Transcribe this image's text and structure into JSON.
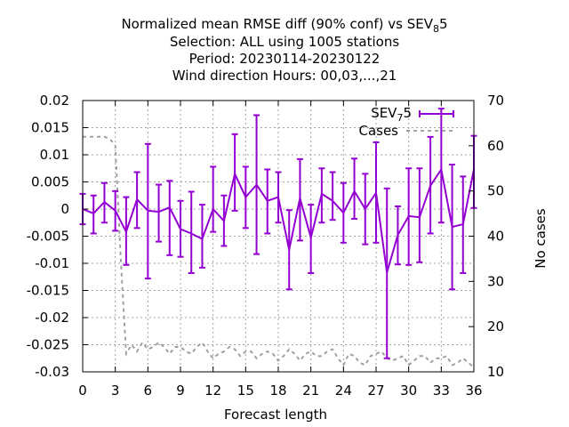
{
  "chart_data": {
    "type": "line",
    "title_lines": [
      "Normalized mean RMSE diff (90% conf) vs SEV",
      "Selection: ALL using  1005 stations",
      "Period: 20230114-20230122",
      "Wind direction   Hours:  00,03,...,21"
    ],
    "title_sub": "8",
    "title_tail": "5",
    "xlabel": "Forecast length",
    "ylabel_right": "No cases",
    "xlim": [
      0,
      36
    ],
    "ylim": [
      -0.03,
      0.02
    ],
    "y2lim": [
      10,
      70
    ],
    "x_ticks": [
      0,
      3,
      6,
      9,
      12,
      15,
      18,
      21,
      24,
      27,
      30,
      33,
      36
    ],
    "y_tick_labels": [
      "0.02",
      "0.015",
      "0.01",
      "0.005",
      "0",
      "-0.005",
      "-0.01",
      "-0.015",
      "-0.02",
      "-0.025",
      "-0.03"
    ],
    "y_ticks": [
      0.02,
      0.015,
      0.01,
      0.005,
      0,
      -0.005,
      -0.01,
      -0.015,
      -0.02,
      -0.025,
      -0.03
    ],
    "y2_ticks": [
      70,
      60,
      50,
      40,
      30,
      20,
      10
    ],
    "grid": true,
    "legend_position": "top-right",
    "colors": {
      "series": "#9400d3",
      "cases": "#a0a0a0"
    },
    "series": [
      {
        "name": "SEV",
        "name_sub": "7",
        "name_tail": "5",
        "x": [
          0,
          1,
          2,
          3,
          4,
          5,
          6,
          7,
          8,
          9,
          10,
          11,
          12,
          13,
          14,
          15,
          16,
          17,
          18,
          19,
          20,
          21,
          22,
          23,
          24,
          25,
          26,
          27,
          28,
          29,
          30,
          31,
          32,
          33,
          34,
          35,
          36
        ],
        "y": [
          0.0,
          -0.0008,
          0.0013,
          -0.0003,
          -0.0042,
          0.0018,
          -0.0003,
          -0.0005,
          0.0003,
          -0.0037,
          -0.0045,
          -0.0055,
          0.0,
          -0.0022,
          0.0065,
          0.0022,
          0.0045,
          0.0015,
          0.0022,
          -0.0075,
          0.002,
          -0.0053,
          0.0028,
          0.0015,
          -0.0007,
          0.0033,
          0.0,
          0.003,
          -0.0117,
          -0.0048,
          -0.0013,
          -0.0015,
          0.0043,
          0.0073,
          -0.0033,
          -0.0028,
          0.0073
        ],
        "err_low": [
          -0.0028,
          -0.0045,
          -0.0025,
          -0.004,
          -0.0103,
          -0.0035,
          -0.0128,
          -0.006,
          -0.0085,
          -0.0088,
          -0.0118,
          -0.0108,
          -0.0042,
          -0.0068,
          -0.0003,
          -0.0035,
          -0.0083,
          -0.0045,
          -0.0025,
          -0.0148,
          -0.0058,
          -0.0118,
          -0.0025,
          -0.002,
          -0.0062,
          -0.0018,
          -0.0065,
          -0.0062,
          -0.0275,
          -0.0102,
          -0.0103,
          -0.0098,
          -0.0045,
          -0.0025,
          -0.0148,
          -0.0118,
          0.0002
        ],
        "err_high": [
          0.0028,
          0.0025,
          0.0048,
          0.0033,
          0.0022,
          0.0068,
          0.012,
          0.0045,
          0.0052,
          0.0015,
          0.0032,
          0.0008,
          0.0078,
          0.0025,
          0.0138,
          0.0078,
          0.0173,
          0.0073,
          0.0068,
          -0.0002,
          0.0092,
          0.0008,
          0.0075,
          0.0068,
          0.0048,
          0.0093,
          0.0065,
          0.0123,
          0.0038,
          0.0005,
          0.0075,
          0.0075,
          0.0133,
          0.0185,
          0.0082,
          0.006,
          0.0135
        ]
      },
      {
        "name": "Cases",
        "x": [
          0,
          0.5,
          1,
          1.5,
          2,
          2.5,
          3,
          3.5,
          4,
          4.5,
          5,
          5.5,
          6,
          6.5,
          7,
          7.5,
          8,
          8.5,
          9,
          9.5,
          10,
          10.5,
          11,
          11.5,
          12,
          12.5,
          13,
          13.5,
          14,
          14.5,
          15,
          15.5,
          16,
          16.5,
          17,
          17.5,
          18,
          18.5,
          19,
          19.5,
          20,
          20.5,
          21,
          21.5,
          22,
          22.5,
          23,
          23.5,
          24,
          24.5,
          25,
          25.5,
          26,
          26.5,
          27,
          27.5,
          28,
          28.5,
          29,
          29.5,
          30,
          30.5,
          31,
          31.5,
          32,
          32.5,
          33,
          33.5,
          34,
          34.5,
          35,
          35.5,
          36
        ],
        "y": [
          62,
          62,
          62,
          62,
          62,
          61.5,
          60,
          35,
          14,
          16,
          14.5,
          16.5,
          15,
          15.5,
          16.5,
          15.5,
          14,
          15.5,
          15.5,
          14.5,
          14,
          15.5,
          16.5,
          14.5,
          13,
          14,
          14.5,
          15.5,
          15,
          13.5,
          14.5,
          14.5,
          13,
          14,
          14.5,
          14,
          12.5,
          13.5,
          15,
          14,
          12.5,
          14,
          14.5,
          13.5,
          13.5,
          14.5,
          15,
          13,
          11.5,
          14,
          13.5,
          12,
          11.5,
          13.5,
          14,
          14.5,
          13,
          12.5,
          13,
          13.5,
          11.5,
          12.5,
          13.5,
          13.5,
          12,
          13,
          13,
          13.5,
          11.5,
          12,
          13,
          12,
          11
        ]
      }
    ]
  }
}
